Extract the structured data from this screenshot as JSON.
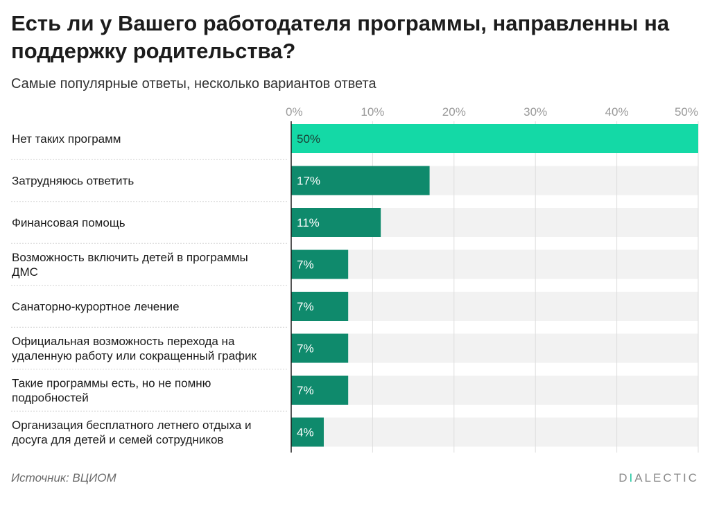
{
  "header": {
    "title": "Есть ли у Вашего работодателя программы, направленны на поддержку родительства?",
    "subtitle": "Самые популярные ответы, несколько вариантов ответа"
  },
  "footer": {
    "source": "Источник: ВЦИОМ",
    "brand_first": "D",
    "brand_accent": "I",
    "brand_rest": "ALECTIC"
  },
  "colors": {
    "highlight_bar": "#14d9a6",
    "bar": "#0f8a6c",
    "track": "#f2f2f2"
  },
  "chart_data": {
    "type": "bar",
    "orientation": "horizontal",
    "title": "Есть ли у Вашего работодателя программы, направленны на поддержку родительства?",
    "subtitle": "Самые популярные ответы, несколько вариантов ответа",
    "xlim": [
      0,
      50
    ],
    "ticks": [
      "0%",
      "10%",
      "20%",
      "30%",
      "40%",
      "50%"
    ],
    "tick_values": [
      0,
      10,
      20,
      30,
      40,
      50
    ],
    "grid": true,
    "categories": [
      [
        "Нет таких программ"
      ],
      [
        "Затрудняюсь ответить"
      ],
      [
        "Финансовая помощь"
      ],
      [
        "Возможность включить детей в программы",
        "ДМС"
      ],
      [
        "Санаторно-курортное лечение"
      ],
      [
        "Официальная возможность перехода на",
        "удаленную работу или сокращенный график"
      ],
      [
        "Такие программы есть, но не помню",
        "подробностей"
      ],
      [
        "Организация бесплатного летнего отдыха и",
        "досуга для детей и семей сотрудников"
      ]
    ],
    "values": [
      50,
      17,
      11,
      7,
      7,
      7,
      7,
      4
    ],
    "labels": [
      "50%",
      "17%",
      "11%",
      "7%",
      "7%",
      "7%",
      "7%",
      "4%"
    ]
  }
}
